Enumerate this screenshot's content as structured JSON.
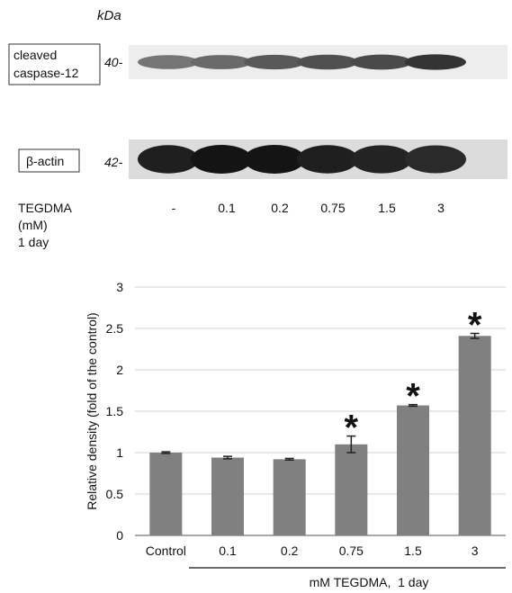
{
  "blot": {
    "unit_label": "kDa",
    "bands": [
      {
        "name": "cleaved\ncaspase-12",
        "marker": "40-",
        "intensities": [
          0.55,
          0.6,
          0.68,
          0.72,
          0.75,
          0.85
        ]
      },
      {
        "name": "β-actin",
        "marker": "42-",
        "intensities": [
          0.95,
          1.0,
          1.0,
          0.95,
          0.93,
          0.9
        ]
      }
    ],
    "treatment_label": "TEGDMA\n(mM)\n1 day",
    "lanes": [
      "-",
      "0.1",
      "0.2",
      "0.75",
      "1.5",
      "3"
    ]
  },
  "chart_data": {
    "type": "bar",
    "categories": [
      "Control",
      "0.1",
      "0.2",
      "0.75",
      "1.5",
      "3"
    ],
    "values": [
      1.0,
      0.94,
      0.92,
      1.1,
      1.57,
      2.41
    ],
    "errors": [
      0.01,
      0.015,
      0.01,
      0.1,
      0.01,
      0.03
    ],
    "significant": [
      false,
      false,
      false,
      true,
      true,
      true
    ],
    "significance_marker": "*",
    "ylabel": "Relative density (fold of the control)",
    "xlabel": "mM TEGDMA,  1 day",
    "ylim": [
      0,
      3
    ],
    "yticks": [
      "0",
      "0.5",
      "1",
      "1.5",
      "2",
      "2.5",
      "3"
    ],
    "grid": true,
    "bar_color": "#808080"
  }
}
